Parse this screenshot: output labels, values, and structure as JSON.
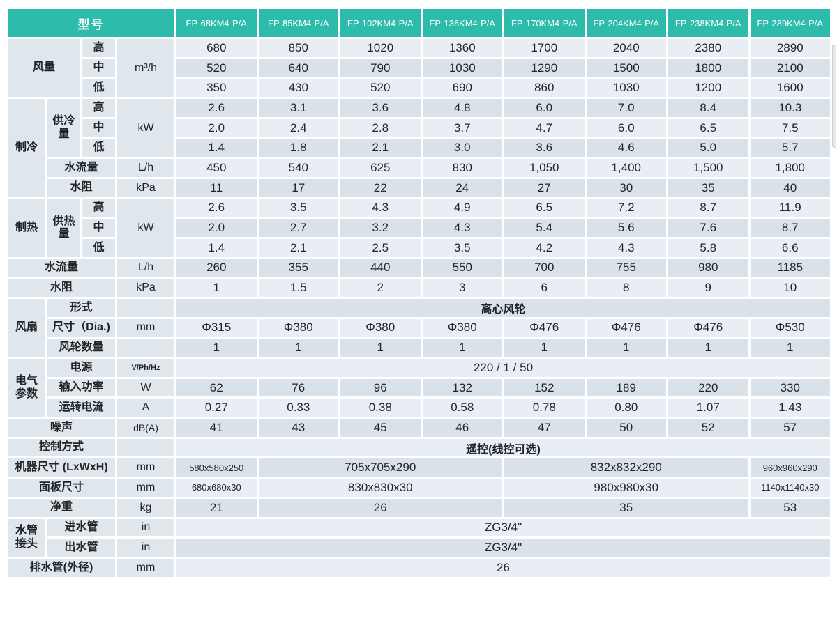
{
  "colors": {
    "header_bg": "#2dbcac",
    "row_light": "#e8eef3",
    "row_dark": "#d9e2e9",
    "label_bg": "#dfe6ec",
    "gridline": "#ffffff"
  },
  "table": {
    "header": {
      "model_label": "型号",
      "models": [
        "FP-68KM4-P/A",
        "FP-85KM4-P/A",
        "FP-102KM4-P/A",
        "FP-136KM4-P/A",
        "FP-170KM4-P/A",
        "FP-204KM4-P/A",
        "FP-238KM4-P/A",
        "FP-289KM4-P/A"
      ]
    },
    "rows": [
      {
        "name": "airflow-high-row",
        "cells": [
          {
            "t": "风量",
            "cs": 2,
            "rs": 3,
            "k": "label"
          },
          {
            "t": "高",
            "k": "label"
          },
          {
            "t": "m³/h",
            "rs": 3,
            "k": "unit"
          },
          "680",
          "850",
          "1020",
          "1360",
          "1700",
          "2040",
          "2380",
          "2890"
        ]
      },
      {
        "name": "airflow-mid-row",
        "cells": [
          {
            "t": "中",
            "k": "label"
          },
          "520",
          "640",
          "790",
          "1030",
          "1290",
          "1500",
          "1800",
          "2100"
        ]
      },
      {
        "name": "airflow-low-row",
        "cells": [
          {
            "t": "低",
            "k": "label"
          },
          "350",
          "430",
          "520",
          "690",
          "860",
          "1030",
          "1200",
          "1600"
        ]
      },
      {
        "name": "cooling-capacity-high-row",
        "cells": [
          {
            "t": "制冷",
            "rs": 5,
            "k": "label"
          },
          {
            "t": "供冷量",
            "rs": 3,
            "k": "label"
          },
          {
            "t": "高",
            "k": "label"
          },
          {
            "t": "kW",
            "rs": 3,
            "k": "unit"
          },
          "2.6",
          "3.1",
          "3.6",
          "4.8",
          "6.0",
          "7.0",
          "8.4",
          "10.3"
        ]
      },
      {
        "name": "cooling-capacity-mid-row",
        "cells": [
          {
            "t": "中",
            "k": "label"
          },
          "2.0",
          "2.4",
          "2.8",
          "3.7",
          "4.7",
          "6.0",
          "6.5",
          "7.5"
        ]
      },
      {
        "name": "cooling-capacity-low-row",
        "cells": [
          {
            "t": "低",
            "k": "label"
          },
          "1.4",
          "1.8",
          "2.1",
          "3.0",
          "3.6",
          "4.6",
          "5.0",
          "5.7"
        ]
      },
      {
        "name": "cooling-water-flow-row",
        "cells": [
          {
            "t": "水流量",
            "cs": 2,
            "k": "label"
          },
          {
            "t": "L/h",
            "k": "unit"
          },
          "450",
          "540",
          "625",
          "830",
          "1,050",
          "1,400",
          "1,500",
          "1,800"
        ]
      },
      {
        "name": "cooling-water-resistance-row",
        "cells": [
          {
            "t": "水阻",
            "cs": 2,
            "k": "label"
          },
          {
            "t": "kPa",
            "k": "unit"
          },
          "11",
          "17",
          "22",
          "24",
          "27",
          "30",
          "35",
          "40"
        ]
      },
      {
        "name": "heating-capacity-high-row",
        "cells": [
          {
            "t": "制热",
            "rs": 3,
            "k": "label"
          },
          {
            "t": "供热量",
            "rs": 3,
            "k": "label"
          },
          {
            "t": "高",
            "k": "label"
          },
          {
            "t": "kW",
            "rs": 3,
            "k": "unit"
          },
          "2.6",
          "3.5",
          "4.3",
          "4.9",
          "6.5",
          "7.2",
          "8.7",
          "11.9"
        ]
      },
      {
        "name": "heating-capacity-mid-row",
        "cells": [
          {
            "t": "中",
            "k": "label"
          },
          "2.0",
          "2.7",
          "3.2",
          "4.3",
          "5.4",
          "5.6",
          "7.6",
          "8.7"
        ]
      },
      {
        "name": "heating-capacity-low-row",
        "cells": [
          {
            "t": "低",
            "k": "label"
          },
          "1.4",
          "2.1",
          "2.5",
          "3.5",
          "4.2",
          "4.3",
          "5.8",
          "6.6"
        ]
      },
      {
        "name": "heating-water-flow-row",
        "cells": [
          {
            "t": "水流量",
            "cs": 3,
            "k": "label"
          },
          {
            "t": "L/h",
            "k": "unit"
          },
          "260",
          "355",
          "440",
          "550",
          "700",
          "755",
          "980",
          "1185"
        ]
      },
      {
        "name": "heating-water-resistance-row",
        "cells": [
          {
            "t": "水阻",
            "cs": 3,
            "k": "label"
          },
          {
            "t": "kPa",
            "k": "unit"
          },
          "1",
          "1.5",
          "2",
          "3",
          "6",
          "8",
          "9",
          "10"
        ]
      },
      {
        "name": "fan-type-row",
        "cells": [
          {
            "t": "风扇",
            "rs": 3,
            "k": "label"
          },
          {
            "t": "形式",
            "cs": 2,
            "k": "label"
          },
          {
            "t": "",
            "k": "unit"
          },
          {
            "t": "离心风轮",
            "cs": 8,
            "cls": "cjk"
          }
        ]
      },
      {
        "name": "fan-diameter-row",
        "cells": [
          {
            "t": "尺寸（Dia.)",
            "cs": 2,
            "k": "label"
          },
          {
            "t": "mm",
            "k": "unit"
          },
          "Φ315",
          "Φ380",
          "Φ380",
          "Φ380",
          "Φ476",
          "Φ476",
          "Φ476",
          "Φ530"
        ]
      },
      {
        "name": "fan-wheel-count-row",
        "cells": [
          {
            "t": "风轮数量",
            "cs": 2,
            "k": "label"
          },
          {
            "t": "",
            "k": "unit"
          },
          "1",
          "1",
          "1",
          "1",
          "1",
          "1",
          "1",
          "1"
        ]
      },
      {
        "name": "power-supply-row",
        "cells": [
          {
            "t": "电气\n参数",
            "rs": 3,
            "k": "label"
          },
          {
            "t": "电源",
            "cs": 2,
            "k": "label"
          },
          {
            "t": "V/Ph/Hz",
            "k": "unit",
            "cls": "xs"
          },
          {
            "t": "220 / 1 / 50",
            "cs": 8
          }
        ]
      },
      {
        "name": "input-power-row",
        "cells": [
          {
            "t": "输入功率",
            "cs": 2,
            "k": "label"
          },
          {
            "t": "W",
            "k": "unit"
          },
          "62",
          "76",
          "96",
          "132",
          "152",
          "189",
          "220",
          "330"
        ]
      },
      {
        "name": "running-current-row",
        "cells": [
          {
            "t": "运转电流",
            "cs": 2,
            "k": "label"
          },
          {
            "t": "A",
            "k": "unit"
          },
          "0.27",
          "0.33",
          "0.38",
          "0.58",
          "0.78",
          "0.80",
          "1.07",
          "1.43"
        ]
      },
      {
        "name": "noise-row",
        "cells": [
          {
            "t": "噪声",
            "cs": 3,
            "k": "label"
          },
          {
            "t": "dB(A)",
            "k": "unit",
            "cls": "md"
          },
          "41",
          "43",
          "45",
          "46",
          "47",
          "50",
          "52",
          "57"
        ]
      },
      {
        "name": "control-mode-row",
        "cells": [
          {
            "t": "控制方式",
            "cs": 3,
            "k": "label"
          },
          {
            "t": "",
            "k": "unit"
          },
          {
            "t": "遥控(线控可选)",
            "cs": 8,
            "cls": "cjk"
          }
        ]
      },
      {
        "name": "unit-dimensions-row",
        "cells": [
          {
            "t": "机器尺寸 (LxWxH)",
            "cs": 3,
            "k": "label"
          },
          {
            "t": "mm",
            "k": "unit"
          },
          {
            "t": "580x580x250",
            "cls": "sm"
          },
          {
            "t": "705x705x290",
            "cs": 3
          },
          {
            "t": "832x832x290",
            "cs": 3
          },
          {
            "t": "960x960x290",
            "cls": "sm"
          }
        ]
      },
      {
        "name": "panel-dimensions-row",
        "cells": [
          {
            "t": "面板尺寸",
            "cs": 3,
            "k": "label"
          },
          {
            "t": "mm",
            "k": "unit"
          },
          {
            "t": "680x680x30",
            "cls": "sm"
          },
          {
            "t": "830x830x30",
            "cs": 3
          },
          {
            "t": "980x980x30",
            "cs": 3
          },
          {
            "t": "1140x1140x30",
            "cls": "sm"
          }
        ]
      },
      {
        "name": "net-weight-row",
        "cells": [
          {
            "t": "净重",
            "cs": 3,
            "k": "label"
          },
          {
            "t": "kg",
            "k": "unit"
          },
          "21",
          {
            "t": "26",
            "cs": 3
          },
          {
            "t": "35",
            "cs": 3
          },
          "53"
        ]
      },
      {
        "name": "inlet-pipe-row",
        "cells": [
          {
            "t": "水管\n接头",
            "rs": 2,
            "k": "label"
          },
          {
            "t": "进水管",
            "cs": 2,
            "k": "label"
          },
          {
            "t": "in",
            "k": "unit"
          },
          {
            "t": "ZG3/4\"",
            "cs": 8
          }
        ]
      },
      {
        "name": "outlet-pipe-row",
        "cells": [
          {
            "t": "出水管",
            "cs": 2,
            "k": "label"
          },
          {
            "t": "in",
            "k": "unit"
          },
          {
            "t": "ZG3/4\"",
            "cs": 8
          }
        ]
      },
      {
        "name": "drain-pipe-row",
        "cells": [
          {
            "t": "排水管(外径)",
            "cs": 3,
            "k": "label"
          },
          {
            "t": "mm",
            "k": "unit"
          },
          {
            "t": "26",
            "cs": 8
          }
        ]
      }
    ]
  }
}
